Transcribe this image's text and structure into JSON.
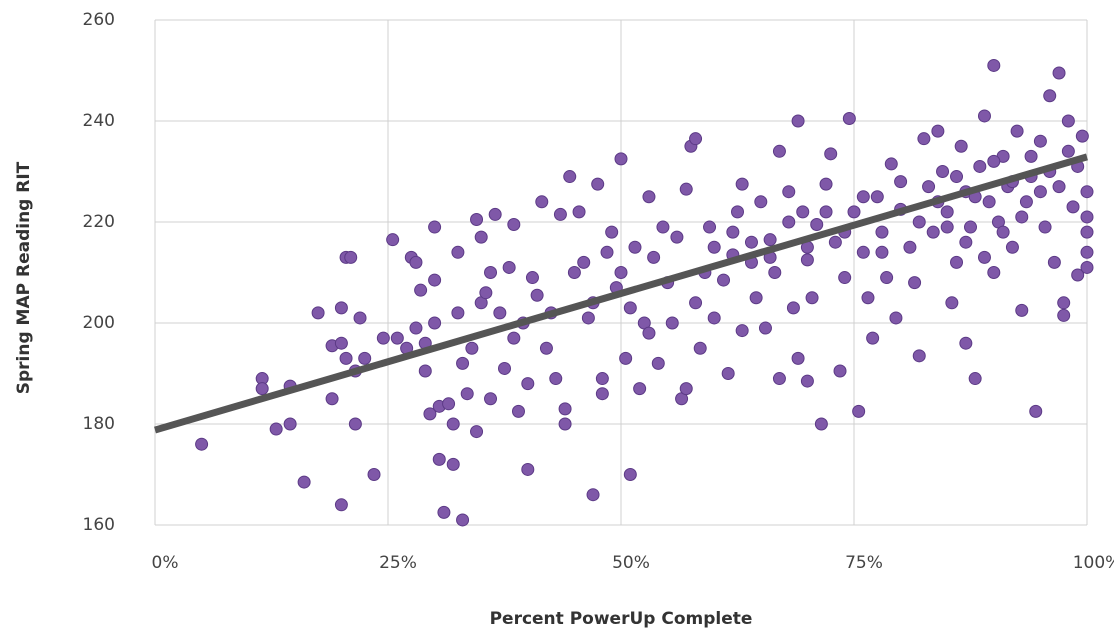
{
  "chart_data": {
    "type": "scatter",
    "x_label": "Percent PowerUp Complete",
    "y_label": "Spring MAP Reading RIT",
    "xlim": [
      0,
      100
    ],
    "ylim": [
      160,
      260
    ],
    "xticks": [
      {
        "value": 0,
        "label": "0%"
      },
      {
        "value": 25,
        "label": "25%"
      },
      {
        "value": 50,
        "label": "50%"
      },
      {
        "value": 75,
        "label": "75%"
      },
      {
        "value": 100,
        "label": "100%"
      }
    ],
    "yticks": [
      160,
      180,
      200,
      220,
      240,
      260
    ],
    "grid": true,
    "color": "#7f58a8",
    "trendline": {
      "x": [
        0,
        100
      ],
      "values": [
        178.8,
        232.9
      ],
      "color": "#555555"
    },
    "points": [
      [
        5,
        176
      ],
      [
        11.5,
        189
      ],
      [
        11.5,
        187
      ],
      [
        13,
        179
      ],
      [
        14.5,
        187.5
      ],
      [
        14.5,
        180
      ],
      [
        16,
        168.5
      ],
      [
        17.5,
        202
      ],
      [
        19,
        195.5
      ],
      [
        19,
        185
      ],
      [
        20,
        164
      ],
      [
        20,
        196
      ],
      [
        20,
        203
      ],
      [
        20.5,
        213
      ],
      [
        21,
        213
      ],
      [
        20.5,
        193
      ],
      [
        21.5,
        180
      ],
      [
        21.5,
        190.5
      ],
      [
        22,
        201
      ],
      [
        22.5,
        193
      ],
      [
        23.5,
        170
      ],
      [
        24.5,
        197
      ],
      [
        25.5,
        216.5
      ],
      [
        26,
        197
      ],
      [
        27,
        195
      ],
      [
        27.5,
        213
      ],
      [
        28,
        212
      ],
      [
        28,
        199
      ],
      [
        28.5,
        206.5
      ],
      [
        29,
        190.5
      ],
      [
        29,
        196
      ],
      [
        30,
        219
      ],
      [
        30,
        208.5
      ],
      [
        30,
        200
      ],
      [
        29.5,
        182
      ],
      [
        30.5,
        183.5
      ],
      [
        30.5,
        173
      ],
      [
        31,
        162.5
      ],
      [
        31.5,
        184
      ],
      [
        32,
        172
      ],
      [
        32,
        180
      ],
      [
        32.5,
        214
      ],
      [
        32.5,
        202
      ],
      [
        33,
        161
      ],
      [
        33,
        192
      ],
      [
        33.5,
        186
      ],
      [
        34,
        195
      ],
      [
        34.5,
        178.5
      ],
      [
        34.5,
        220.5
      ],
      [
        35,
        217
      ],
      [
        35,
        204
      ],
      [
        35.5,
        206
      ],
      [
        36,
        210
      ],
      [
        36,
        185
      ],
      [
        36.5,
        221.5
      ],
      [
        37,
        202
      ],
      [
        37.5,
        191
      ],
      [
        38,
        211
      ],
      [
        38.5,
        219.5
      ],
      [
        38.5,
        197
      ],
      [
        39,
        182.5
      ],
      [
        39.5,
        200
      ],
      [
        40,
        171
      ],
      [
        40,
        188
      ],
      [
        40.5,
        209
      ],
      [
        41,
        205.5
      ],
      [
        41.5,
        224
      ],
      [
        42,
        195
      ],
      [
        42.5,
        202
      ],
      [
        43,
        189
      ],
      [
        43.5,
        221.5
      ],
      [
        44,
        180
      ],
      [
        44,
        183
      ],
      [
        44.5,
        229
      ],
      [
        45,
        210
      ],
      [
        45.5,
        222
      ],
      [
        46,
        212
      ],
      [
        46.5,
        201
      ],
      [
        47,
        166
      ],
      [
        47,
        204
      ],
      [
        47.5,
        227.5
      ],
      [
        48,
        189
      ],
      [
        48,
        186
      ],
      [
        48.5,
        214
      ],
      [
        49,
        218
      ],
      [
        49.5,
        207
      ],
      [
        50,
        232.5
      ],
      [
        50,
        210
      ],
      [
        50.5,
        193
      ],
      [
        51,
        170
      ],
      [
        51,
        203
      ],
      [
        51.5,
        215
      ],
      [
        52,
        187
      ],
      [
        52.5,
        200
      ],
      [
        53,
        225
      ],
      [
        53,
        198
      ],
      [
        53.5,
        213
      ],
      [
        54,
        192
      ],
      [
        54.5,
        219
      ],
      [
        55,
        208
      ],
      [
        55.5,
        200
      ],
      [
        56,
        217
      ],
      [
        56.5,
        185
      ],
      [
        57,
        187
      ],
      [
        57,
        226.5
      ],
      [
        57.5,
        235
      ],
      [
        58,
        236.5
      ],
      [
        58,
        204
      ],
      [
        58.5,
        195
      ],
      [
        59,
        210
      ],
      [
        59.5,
        219
      ],
      [
        60,
        215
      ],
      [
        60,
        201
      ],
      [
        61,
        208.5
      ],
      [
        61.5,
        190
      ],
      [
        62,
        213.5
      ],
      [
        62.5,
        222
      ],
      [
        63,
        227.5
      ],
      [
        63,
        198.5
      ],
      [
        64,
        212
      ],
      [
        64.5,
        205
      ],
      [
        65,
        224
      ],
      [
        65.5,
        199
      ],
      [
        66,
        216.5
      ],
      [
        66.5,
        210
      ],
      [
        67,
        234
      ],
      [
        67,
        189
      ],
      [
        68,
        226
      ],
      [
        68.5,
        203
      ],
      [
        69,
        240
      ],
      [
        69,
        193
      ],
      [
        69.5,
        222
      ],
      [
        70,
        212.5
      ],
      [
        70,
        188.5
      ],
      [
        70.5,
        205
      ],
      [
        71,
        219.5
      ],
      [
        71.5,
        180
      ],
      [
        72,
        227.5
      ],
      [
        72.5,
        233.5
      ],
      [
        73,
        216
      ],
      [
        73.5,
        190.5
      ],
      [
        74,
        209
      ],
      [
        74.5,
        240.5
      ],
      [
        75,
        222
      ],
      [
        75.5,
        182.5
      ],
      [
        76,
        214
      ],
      [
        76.5,
        205
      ],
      [
        77,
        197
      ],
      [
        77.5,
        225
      ],
      [
        78,
        218
      ],
      [
        78.5,
        209
      ],
      [
        79,
        231.5
      ],
      [
        79.5,
        201
      ],
      [
        80,
        222.5
      ],
      [
        81,
        215
      ],
      [
        81.5,
        208
      ],
      [
        82,
        193.5
      ],
      [
        82.5,
        236.5
      ],
      [
        83,
        227
      ],
      [
        83.5,
        218
      ],
      [
        84,
        238
      ],
      [
        84.5,
        230
      ],
      [
        85,
        222
      ],
      [
        85.5,
        204
      ],
      [
        86,
        212
      ],
      [
        86.5,
        235
      ],
      [
        87,
        196
      ],
      [
        87,
        226
      ],
      [
        87.5,
        219
      ],
      [
        88,
        189
      ],
      [
        88.5,
        231
      ],
      [
        89,
        241
      ],
      [
        89.5,
        224
      ],
      [
        90,
        251
      ],
      [
        90,
        210
      ],
      [
        90.5,
        220
      ],
      [
        91,
        233
      ],
      [
        91.5,
        227
      ],
      [
        92,
        215
      ],
      [
        92.5,
        238
      ],
      [
        93,
        202.5
      ],
      [
        93.5,
        224
      ],
      [
        94,
        229
      ],
      [
        94.5,
        182.5
      ],
      [
        95,
        236
      ],
      [
        95.5,
        219
      ],
      [
        96,
        245
      ],
      [
        96.5,
        212
      ],
      [
        97,
        249.5
      ],
      [
        97,
        227
      ],
      [
        97.5,
        204
      ],
      [
        97.5,
        201.5
      ],
      [
        98,
        240
      ],
      [
        98.5,
        223
      ],
      [
        99,
        231
      ],
      [
        99,
        209.5
      ],
      [
        99.5,
        237
      ],
      [
        100,
        226
      ],
      [
        100,
        218
      ],
      [
        100,
        211
      ],
      [
        100,
        214
      ],
      [
        100,
        221
      ],
      [
        62,
        218
      ],
      [
        64,
        216
      ],
      [
        66,
        213
      ],
      [
        68,
        220
      ],
      [
        70,
        215
      ],
      [
        72,
        222
      ],
      [
        74,
        218
      ],
      [
        76,
        225
      ],
      [
        78,
        214
      ],
      [
        80,
        228
      ],
      [
        82,
        220
      ],
      [
        84,
        224
      ],
      [
        86,
        229
      ],
      [
        88,
        225
      ],
      [
        90,
        232
      ],
      [
        92,
        228
      ],
      [
        94,
        233
      ],
      [
        96,
        230
      ],
      [
        98,
        234
      ],
      [
        95,
        226
      ],
      [
        93,
        221
      ],
      [
        91,
        218
      ],
      [
        89,
        213
      ],
      [
        87,
        216
      ],
      [
        85,
        219
      ]
    ]
  }
}
